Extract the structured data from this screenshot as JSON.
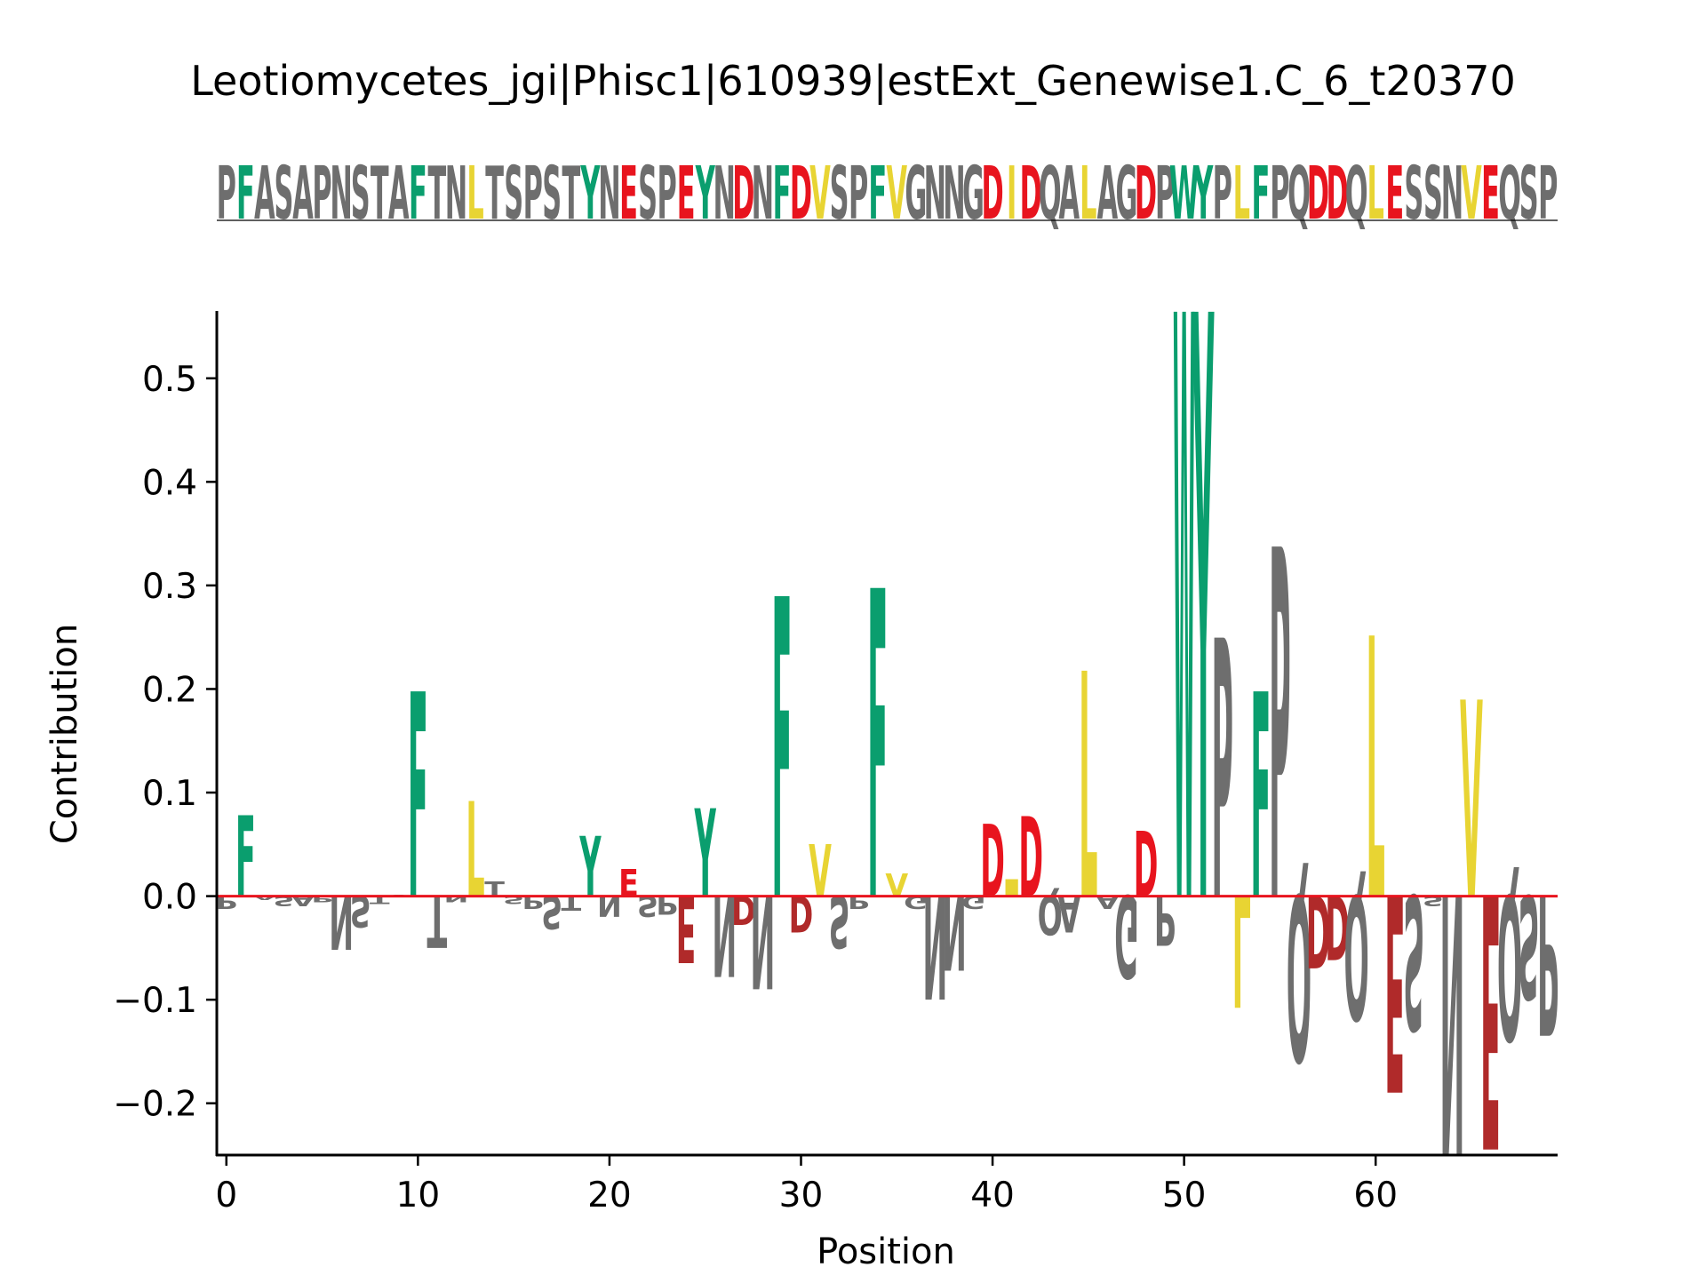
{
  "chart_data": {
    "type": "sequence-logo",
    "title": "Leotiomycetes_jgi|Phisc1|610939|estExt_Genewise1.C_6_t20370",
    "sequence": "PFASAPNSTAFTNLTSPSTYNESPEYNDNFDVSPFVGNNGDIDQALAGDPWYPLFPQDDQLESSNVEQSP",
    "xlabel": "Position",
    "ylabel": "Contribution",
    "xlim": [
      -0.5,
      69.5
    ],
    "ylim": [
      -0.25,
      0.565
    ],
    "xticks": [
      0,
      10,
      20,
      30,
      40,
      50,
      60
    ],
    "yticks": [
      -0.2,
      -0.1,
      0.0,
      0.1,
      0.2,
      0.3,
      0.4,
      0.5
    ],
    "ytick_labels": [
      "−0.2",
      "−0.1",
      "0.0",
      "0.1",
      "0.2",
      "0.3",
      "0.4",
      "0.5"
    ],
    "baseline_color": "#e8141e",
    "colors": {
      "hydrophobic": "#e8d433",
      "aromatic": "#0a9e6e",
      "acidic_positive": "#e8141e",
      "acidic_negative": "#b02a2a",
      "other": "#6e6e6e"
    },
    "contributions": [
      -0.012,
      0.078,
      -0.004,
      -0.01,
      -0.01,
      -0.006,
      -0.052,
      -0.03,
      -0.008,
      0.001,
      0.198,
      -0.05,
      -0.006,
      0.092,
      0.014,
      -0.008,
      -0.012,
      -0.032,
      -0.014,
      0.058,
      -0.02,
      0.026,
      -0.02,
      -0.018,
      -0.065,
      0.085,
      -0.078,
      -0.028,
      -0.09,
      0.29,
      -0.035,
      0.05,
      -0.05,
      -0.012,
      0.298,
      0.022,
      -0.012,
      -0.1,
      -0.072,
      -0.012,
      0.07,
      0.016,
      0.077,
      -0.038,
      -0.035,
      0.218,
      -0.012,
      -0.08,
      0.063,
      -0.048,
      0.565,
      0.565,
      0.25,
      -0.108,
      0.198,
      0.338,
      -0.16,
      -0.07,
      -0.062,
      -0.12,
      0.252,
      -0.19,
      -0.13,
      -0.01,
      -0.25,
      0.19,
      -0.245,
      -0.14,
      -0.1,
      -0.135
    ]
  }
}
